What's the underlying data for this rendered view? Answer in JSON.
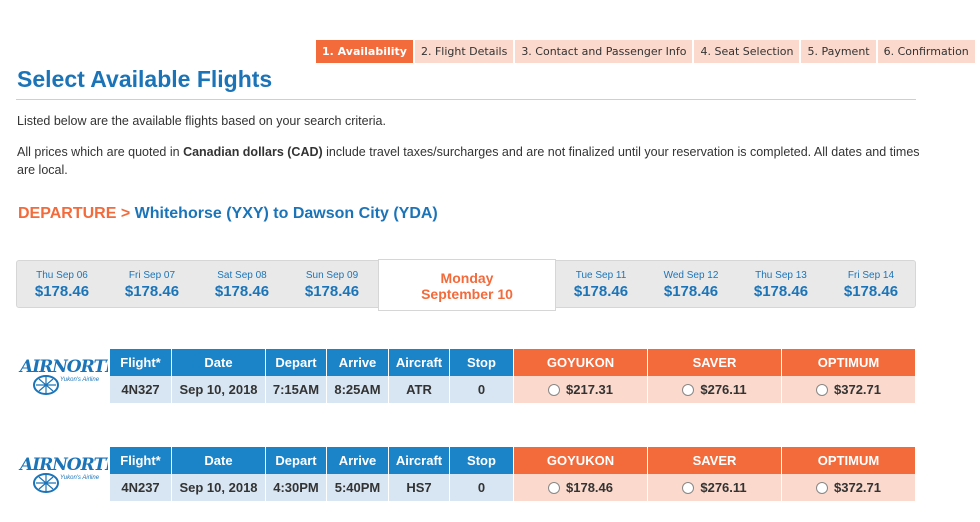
{
  "steps": [
    {
      "label": "1. Availability",
      "active": true
    },
    {
      "label": "2. Flight Details",
      "active": false
    },
    {
      "label": "3. Contact and Passenger Info",
      "active": false
    },
    {
      "label": "4. Seat Selection",
      "active": false
    },
    {
      "label": "5. Payment",
      "active": false
    },
    {
      "label": "6. Confirmation",
      "active": false
    }
  ],
  "page_title": "Select Available Flights",
  "intro": "Listed below are the available flights based on your search criteria.",
  "price_note": {
    "before": "All prices which are quoted in ",
    "bold": "Canadian dollars (CAD)",
    "after": " include travel taxes/surcharges and are not finalized until your reservation is completed. All dates and times are local."
  },
  "route": {
    "label": "DEPARTURE",
    "arrow": ">",
    "path": "Whitehorse (YXY) to Dawson City (YDA)"
  },
  "dates_before": [
    {
      "day": "Thu Sep 06",
      "price": "$178.46"
    },
    {
      "day": "Fri Sep 07",
      "price": "$178.46"
    },
    {
      "day": "Sat Sep 08",
      "price": "$178.46"
    },
    {
      "day": "Sun Sep 09",
      "price": "$178.46"
    }
  ],
  "selected_date": {
    "line1": "Monday",
    "line2": "September 10"
  },
  "dates_after": [
    {
      "day": "Tue Sep 11",
      "price": "$178.46"
    },
    {
      "day": "Wed Sep 12",
      "price": "$178.46"
    },
    {
      "day": "Thu Sep 13",
      "price": "$178.46"
    },
    {
      "day": "Fri Sep 14",
      "price": "$178.46"
    }
  ],
  "columns": [
    "Flight*",
    "Date",
    "Depart",
    "Arrive",
    "Aircraft",
    "Stop"
  ],
  "fare_columns": [
    "GOYUKON",
    "SAVER",
    "OPTIMUM"
  ],
  "logo": {
    "main": "AIRNORTH",
    "tagline": "Yukon's Airline"
  },
  "flights": [
    {
      "flight": "4N327",
      "date": "Sep 10, 2018",
      "depart": "7:15AM",
      "arrive": "8:25AM",
      "aircraft": "ATR",
      "stop": "0",
      "fares": [
        "$217.31",
        "$276.11",
        "$372.71"
      ]
    },
    {
      "flight": "4N237",
      "date": "Sep 10, 2018",
      "depart": "4:30PM",
      "arrive": "5:40PM",
      "aircraft": "HS7",
      "stop": "0",
      "fares": [
        "$178.46",
        "$276.11",
        "$372.71"
      ]
    }
  ],
  "colors": {
    "brand_blue": "#1b74b8",
    "accent_orange": "#f36a3b",
    "fare_bg": "#fbd9cc",
    "info_bg": "#d8e6f3"
  }
}
